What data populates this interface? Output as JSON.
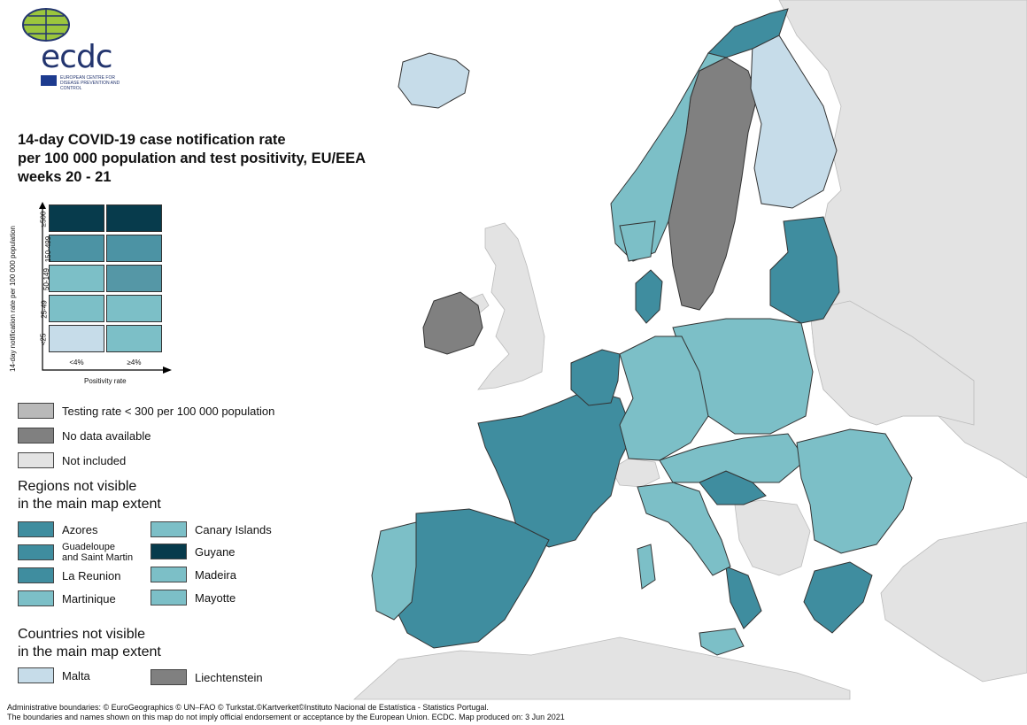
{
  "logo": {
    "text": "ecdc",
    "subtitle": "EUROPEAN CENTRE FOR DISEASE PREVENTION AND CONTROL"
  },
  "title": {
    "line1": "14-day COVID-19 case notification rate",
    "line2": "per 100 000 population and test positivity, EU/EEA",
    "line3": "weeks 20 - 21"
  },
  "matrix": {
    "y_label": "14-day notification rate per 100 000 population",
    "x_label": "Positivity rate",
    "y_categories": [
      "≥500",
      "150-499",
      "50-149",
      "25-49",
      "<25"
    ],
    "x_categories": [
      "<4%",
      "≥4%"
    ],
    "colors": [
      [
        "#073b4c",
        "#073b4c"
      ],
      [
        "#4c93a4",
        "#4c93a4"
      ],
      [
        "#7cbfc7",
        "#5597a6"
      ],
      [
        "#7cbfc7",
        "#7cbfc7"
      ],
      [
        "#c6dce9",
        "#7cbfc7"
      ]
    ]
  },
  "status_legend": [
    {
      "label": "Testing rate < 300 per 100 000 population",
      "color": "#b9b9b9"
    },
    {
      "label": "No data available",
      "color": "#808080"
    },
    {
      "label": "Not included",
      "color": "#e3e3e3"
    }
  ],
  "regions_legend": {
    "heading_line1": "Regions not visible",
    "heading_line2": "in the main map extent",
    "items": [
      {
        "label": "Azores",
        "color": "#3f8d9f"
      },
      {
        "label": "Canary Islands",
        "color": "#7cbfc7"
      },
      {
        "label_line1": "Guadeloupe",
        "label_line2": "and Saint Martin",
        "color": "#3f8d9f"
      },
      {
        "label": "Guyane",
        "color": "#073b4c"
      },
      {
        "label": "La Reunion",
        "color": "#3f8d9f"
      },
      {
        "label": "Madeira",
        "color": "#7cbfc7"
      },
      {
        "label": "Martinique",
        "color": "#7cbfc7"
      },
      {
        "label": "Mayotte",
        "color": "#7cbfc7"
      }
    ]
  },
  "countries_legend": {
    "heading_line1": "Countries not visible",
    "heading_line2": "in the main map extent",
    "items": [
      {
        "label": "Malta",
        "color": "#c6dce9"
      },
      {
        "label": "Liechtenstein",
        "color": "#808080"
      }
    ]
  },
  "map": {
    "colors": {
      "sea": "#ffffff",
      "not_included": "#e3e3e3",
      "no_data": "#808080",
      "light": "#c6dce9",
      "mid": "#7cbfc7",
      "dark": "#3f8d9f",
      "border": "#333333"
    }
  },
  "footer": {
    "line1": "Administrative boundaries: © EuroGeographics © UN–FAO © Turkstat.©Kartverket©Instituto Nacional de Estatística - Statistics Portugal.",
    "line2": "The boundaries and names shown on this map do not imply official endorsement or acceptance by the European Union. ECDC. Map produced on: 3 Jun 2021"
  }
}
